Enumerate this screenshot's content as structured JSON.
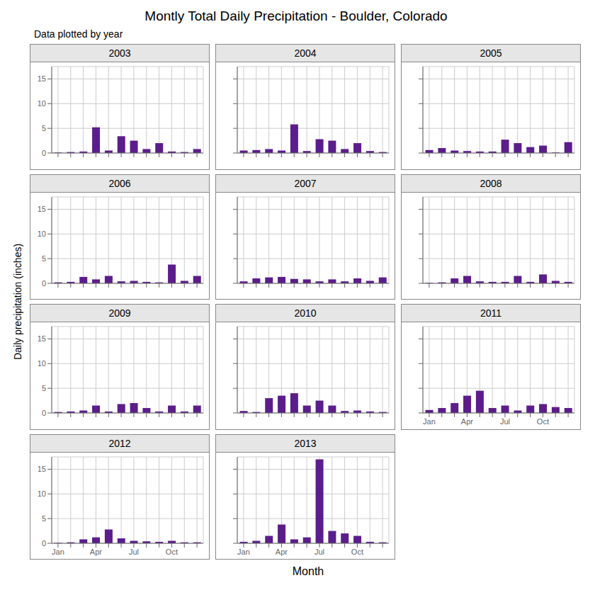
{
  "title": "Montly Total Daily Precipitation - Boulder, Colorado",
  "subtitle": "Data plotted by year",
  "xlabel": "Month",
  "ylabel": "Daily precipitation (inches)",
  "chart_data": [
    {
      "type": "bar",
      "title": "2003",
      "categories": [
        "Jan",
        null,
        null,
        "Apr",
        null,
        null,
        "Jul",
        null,
        null,
        "Oct",
        null,
        null
      ],
      "values": [
        0.1,
        0.2,
        0.3,
        5.2,
        0.5,
        3.4,
        2.5,
        0.8,
        2.0,
        0.3,
        0.2,
        0.8
      ],
      "color": "#5b1d8b",
      "ylim": [
        0,
        17.5
      ],
      "yticks": [
        0,
        5,
        10,
        15
      ],
      "grid": true,
      "tick_labels": "y"
    },
    {
      "type": "bar",
      "title": "2004",
      "categories": [
        "Jan",
        null,
        null,
        "Apr",
        null,
        null,
        "Jul",
        null,
        null,
        "Oct",
        null,
        null
      ],
      "values": [
        0.5,
        0.6,
        0.8,
        0.5,
        5.8,
        0.4,
        2.8,
        2.5,
        0.8,
        2.0,
        0.4,
        0.2
      ],
      "color": "#5b1d8b",
      "ylim": [
        0,
        17.5
      ],
      "yticks": [
        0,
        5,
        10,
        15
      ],
      "grid": true,
      "tick_labels": false
    },
    {
      "type": "bar",
      "title": "2005",
      "categories": [
        "Jan",
        null,
        null,
        "Apr",
        null,
        null,
        "Jul",
        null,
        null,
        "Oct",
        null,
        null
      ],
      "values": [
        0.6,
        1.0,
        0.5,
        0.4,
        0.3,
        0.3,
        2.7,
        2.0,
        1.2,
        1.5,
        0.1,
        2.2
      ],
      "color": "#5b1d8b",
      "ylim": [
        0,
        17.5
      ],
      "yticks": [
        0,
        5,
        10,
        15
      ],
      "grid": true,
      "tick_labels": false
    },
    {
      "type": "bar",
      "title": "2006",
      "categories": [
        "Jan",
        null,
        null,
        "Apr",
        null,
        null,
        "Jul",
        null,
        null,
        "Oct",
        null,
        null
      ],
      "values": [
        0.2,
        0.3,
        1.3,
        0.8,
        1.5,
        0.4,
        0.5,
        0.3,
        0.2,
        3.8,
        0.5,
        1.5
      ],
      "color": "#5b1d8b",
      "ylim": [
        0,
        17.5
      ],
      "yticks": [
        0,
        5,
        10,
        15
      ],
      "grid": true,
      "tick_labels": "y"
    },
    {
      "type": "bar",
      "title": "2007",
      "categories": [
        "Jan",
        null,
        null,
        "Apr",
        null,
        null,
        "Jul",
        null,
        null,
        "Oct",
        null,
        null
      ],
      "values": [
        0.4,
        1.0,
        1.2,
        1.3,
        0.9,
        0.8,
        0.4,
        0.8,
        0.4,
        1.0,
        0.5,
        1.2
      ],
      "color": "#5b1d8b",
      "ylim": [
        0,
        17.5
      ],
      "yticks": [
        0,
        5,
        10,
        15
      ],
      "grid": true,
      "tick_labels": false
    },
    {
      "type": "bar",
      "title": "2008",
      "categories": [
        "Jan",
        null,
        null,
        "Apr",
        null,
        null,
        "Jul",
        null,
        null,
        "Oct",
        null,
        null
      ],
      "values": [
        0.1,
        0.2,
        1.0,
        1.5,
        0.4,
        0.3,
        0.3,
        1.5,
        0.3,
        1.8,
        0.5,
        0.3
      ],
      "color": "#5b1d8b",
      "ylim": [
        0,
        17.5
      ],
      "yticks": [
        0,
        5,
        10,
        15
      ],
      "grid": true,
      "tick_labels": false
    },
    {
      "type": "bar",
      "title": "2009",
      "categories": [
        "Jan",
        null,
        null,
        "Apr",
        null,
        null,
        "Jul",
        null,
        null,
        "Oct",
        null,
        null
      ],
      "values": [
        0.2,
        0.3,
        0.5,
        1.5,
        0.3,
        1.8,
        2.0,
        1.0,
        0.3,
        1.5,
        0.3,
        1.5
      ],
      "color": "#5b1d8b",
      "ylim": [
        0,
        17.5
      ],
      "yticks": [
        0,
        5,
        10,
        15
      ],
      "grid": true,
      "tick_labels": "y"
    },
    {
      "type": "bar",
      "title": "2010",
      "categories": [
        "Jan",
        null,
        null,
        "Apr",
        null,
        null,
        "Jul",
        null,
        null,
        "Oct",
        null,
        null
      ],
      "values": [
        0.4,
        0.2,
        3.0,
        3.5,
        4.0,
        1.5,
        2.5,
        1.5,
        0.4,
        0.5,
        0.3,
        0.2
      ],
      "color": "#5b1d8b",
      "ylim": [
        0,
        17.5
      ],
      "yticks": [
        0,
        5,
        10,
        15
      ],
      "grid": true,
      "tick_labels": false
    },
    {
      "type": "bar",
      "title": "2011",
      "categories": [
        "Jan",
        null,
        null,
        "Apr",
        null,
        null,
        "Jul",
        null,
        null,
        "Oct",
        null,
        null
      ],
      "values": [
        0.6,
        1.0,
        2.0,
        3.5,
        4.5,
        1.0,
        1.5,
        0.5,
        1.5,
        1.8,
        1.2,
        1.0
      ],
      "color": "#5b1d8b",
      "ylim": [
        0,
        17.5
      ],
      "yticks": [
        0,
        5,
        10,
        15
      ],
      "grid": true,
      "tick_labels": "x"
    },
    {
      "type": "bar",
      "title": "2012",
      "categories": [
        "Jan",
        null,
        null,
        "Apr",
        null,
        null,
        "Jul",
        null,
        null,
        "Oct",
        null,
        null
      ],
      "values": [
        0.1,
        0.2,
        0.8,
        1.2,
        2.8,
        1.0,
        0.5,
        0.4,
        0.3,
        0.5,
        0.2,
        0.2
      ],
      "color": "#5b1d8b",
      "ylim": [
        0,
        17.5
      ],
      "yticks": [
        0,
        5,
        10,
        15
      ],
      "grid": true
    },
    {
      "type": "bar",
      "title": "2013",
      "categories": [
        "Jan",
        null,
        null,
        "Apr",
        null,
        null,
        "Jul",
        null,
        null,
        "Oct",
        null,
        null
      ],
      "values": [
        0.3,
        0.5,
        1.5,
        3.8,
        0.8,
        1.2,
        17.0,
        2.5,
        2.0,
        1.5,
        0.3,
        0.2
      ],
      "color": "#5b1d8b",
      "ylim": [
        0,
        17.5
      ],
      "yticks": [
        0,
        5,
        10,
        15
      ],
      "grid": true,
      "tick_labels": "x"
    }
  ]
}
